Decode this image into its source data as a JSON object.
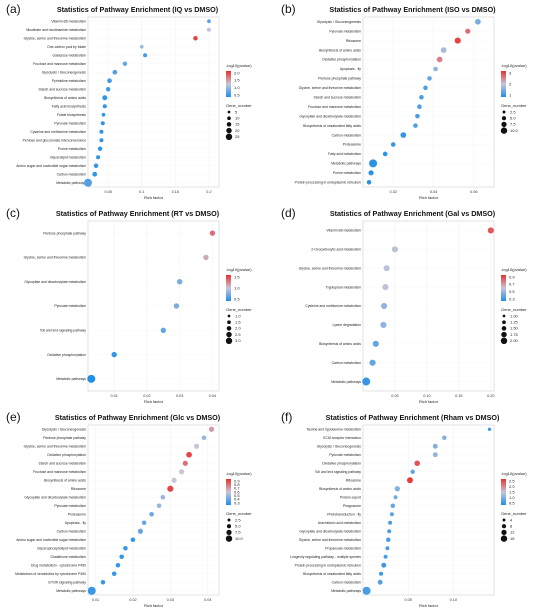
{
  "panels": [
    {
      "letter": "(a)",
      "title": "Statistics of Pathway Enrichment (IQ vs DMSO)"
    },
    {
      "letter": "(b)",
      "title": "Statistics of Pathway Enrichment (ISO vs DMSO)"
    },
    {
      "letter": "(c)",
      "title": "Statistics of Pathway Enrichment (RT vs DMSO)"
    },
    {
      "letter": "(d)",
      "title": "Statistics of Pathway Enrichment (Gal vs DMSO)"
    },
    {
      "letter": "(e)",
      "title": "Statistics of Pathway Enrichment (Glc vs DMSO)"
    },
    {
      "letter": "(f)",
      "title": "Statistics of Pathway Enrichment (Rham vs DMSO)"
    }
  ],
  "colors": {
    "low": "#1f8fe8",
    "mid": "#c9c6d8",
    "high": "#e8312d"
  },
  "chart_data": [
    {
      "type": "scatter",
      "title": "Statistics of Pathway Enrichment (IQ vs DMSO)",
      "xlabel": "Rich factor",
      "xticks": [
        0.05,
        0.1,
        0.15,
        0.2
      ],
      "xlim": [
        0.02,
        0.215
      ],
      "color_legend": {
        "title": "-log10(pvalue)",
        "ticks": [
          "2.0",
          "1.5",
          "1.0",
          "0.5"
        ],
        "min": 0.3,
        "max": 2.2
      },
      "size_legend": {
        "title": "Gene_number",
        "ticks": [
          "5",
          "10",
          "15",
          "20",
          "25"
        ]
      },
      "categories": [
        "Vitamin B6 metabolism",
        "Nicotinate and nicotinamide metabolism",
        "Glycine, serine and threonine metabolism",
        "One carbon pool by folate",
        "Galactose metabolism",
        "Fructose and mannose metabolism",
        "Glycolysis / Gluconeogenesis",
        "Pyrimidine metabolism",
        "Starch and sucrose metabolism",
        "Biosynthesis of amino acids",
        "Fatty acid biosynthesis",
        "Folate biosynthesis",
        "Pyruvate metabolism",
        "Cysteine and methionine metabolism",
        "Pentose and glucuronate interconversions",
        "Purine metabolism",
        "Glycerolipid metabolism",
        "Amino sugar and nucleotide sugar metabolism",
        "Carbon metabolism",
        "Metabolic pathways"
      ],
      "x": [
        0.2,
        0.2,
        0.18,
        0.1,
        0.105,
        0.075,
        0.06,
        0.052,
        0.05,
        0.045,
        0.045,
        0.043,
        0.042,
        0.04,
        0.04,
        0.038,
        0.035,
        0.032,
        0.03,
        0.02
      ],
      "pvalue_log": [
        0.6,
        1.2,
        2.1,
        1.0,
        0.5,
        0.7,
        0.6,
        0.5,
        0.5,
        0.4,
        0.4,
        0.4,
        0.4,
        0.4,
        0.4,
        0.4,
        0.4,
        0.4,
        0.4,
        0.6
      ],
      "gene_number": [
        2,
        3,
        4,
        2,
        3,
        4,
        5,
        5,
        4,
        6,
        3,
        2,
        3,
        3,
        3,
        4,
        3,
        4,
        5,
        22
      ]
    },
    {
      "type": "scatter",
      "title": "Statistics of Pathway Enrichment (ISO vs DMSO)",
      "xlabel": "Rich factor",
      "xticks": [
        0.02,
        0.04,
        0.06
      ],
      "xlim": [
        0.005,
        0.07
      ],
      "color_legend": {
        "title": "-log10(pvalue)",
        "ticks": [
          "3",
          "2",
          "1"
        ],
        "min": 0.2,
        "max": 3.2
      },
      "size_legend": {
        "title": "Gene_number",
        "ticks": [
          "2.5",
          "5.0",
          "7.5",
          "10.0"
        ]
      },
      "categories": [
        "Glycolysis / Gluconeogenesis",
        "Pyruvate metabolism",
        "Ribosome",
        "Biosynthesis of amino acids",
        "Oxidative phosphorylation",
        "Apoptosis - fly",
        "Pentose phosphate pathway",
        "Glycine, serine and threonine metabolism",
        "Starch and sucrose metabolism",
        "Fructose and mannose metabolism",
        "Glyoxylate and dicarboxylate metabolism",
        "Biosynthesis of unsaturated fatty acids",
        "Carbon metabolism",
        "Proteasome",
        "Fatty acid metabolism",
        "Metabolic pathways",
        "Purine metabolism",
        "Protein processing in endoplasmic reticulum"
      ],
      "x": [
        0.062,
        0.057,
        0.052,
        0.045,
        0.043,
        0.041,
        0.038,
        0.036,
        0.034,
        0.033,
        0.032,
        0.031,
        0.025,
        0.02,
        0.016,
        0.01,
        0.009,
        0.008
      ],
      "pvalue_log": [
        1.0,
        2.6,
        3.0,
        1.4,
        2.4,
        1.2,
        0.8,
        0.6,
        0.6,
        0.6,
        0.6,
        0.6,
        0.4,
        0.4,
        0.3,
        0.3,
        0.3,
        0.3
      ],
      "gene_number": [
        4,
        3,
        5,
        4,
        4,
        2,
        2,
        2,
        2,
        2,
        2,
        2,
        4,
        2,
        2,
        10,
        3,
        2
      ]
    },
    {
      "type": "scatter",
      "title": "Statistics of Pathway Enrichment (RT vs DMSO)",
      "xlabel": "Rich factor",
      "xticks": [
        0.01,
        0.02,
        0.03,
        0.04
      ],
      "xlim": [
        0.002,
        0.042
      ],
      "color_legend": {
        "title": "-log10(pvalue)",
        "ticks": [
          "1.5",
          "1.0",
          "0.5"
        ],
        "min": 0.3,
        "max": 1.8
      },
      "size_legend": {
        "title": "Gene_number",
        "ticks": [
          "1.0",
          "1.5",
          "2.0",
          "2.5",
          "3.0"
        ]
      },
      "categories": [
        "Pentose phosphate pathway",
        "Glycine, serine and threonine metabolism",
        "Glyoxylate and dicarboxylate metabolism",
        "Pyruvate metabolism",
        "Toll and Imd signaling pathway",
        "Oxidative phosphorylation",
        "Metabolic pathways"
      ],
      "x": [
        0.04,
        0.038,
        0.03,
        0.029,
        0.025,
        0.01,
        0.003
      ],
      "pvalue_log": [
        1.5,
        1.2,
        0.7,
        0.7,
        0.6,
        0.4,
        0.3
      ],
      "gene_number": [
        1,
        1,
        1,
        1,
        1,
        1,
        3
      ]
    },
    {
      "type": "scatter",
      "title": "Statistics of Pathway Enrichment (Gal vs DMSO)",
      "xlabel": "Rich factor",
      "xticks": [
        0.05,
        0.1,
        0.15,
        0.2
      ],
      "xlim": [
        0.0,
        0.205
      ],
      "xticklabels": [
        "0.05",
        "0.10",
        "0.15",
        "0.20"
      ],
      "color_legend": {
        "title": "-log10(pvalue)",
        "ticks": [
          "0.9",
          "0.7",
          "0.5",
          "0.3"
        ],
        "min": 0.25,
        "max": 1.0
      },
      "size_legend": {
        "title": "Gene_number",
        "ticks": [
          "1.00",
          "1.25",
          "1.50",
          "1.75",
          "2.00"
        ]
      },
      "categories": [
        "Vitamin B6 metabolism",
        "2-Oxocarboxylic acid metabolism",
        "Glycine, serine and threonine metabolism",
        "Tryptophan metabolism",
        "Cysteine and methionine metabolism",
        "Lysine degradation",
        "Biosynthesis of amino acids",
        "Carbon metabolism",
        "Metabolic pathways"
      ],
      "x": [
        0.2,
        0.05,
        0.037,
        0.035,
        0.033,
        0.032,
        0.02,
        0.015,
        0.005
      ],
      "pvalue_log": [
        0.9,
        0.6,
        0.6,
        0.6,
        0.5,
        0.5,
        0.4,
        0.4,
        0.3
      ],
      "gene_number": [
        1,
        1,
        1,
        1,
        1,
        1,
        1,
        1,
        2
      ]
    },
    {
      "type": "scatter",
      "title": "Statistics of Pathway Enrichment (Glc vs DMSO)",
      "xlabel": "Rich factor",
      "xticks": [
        0.01,
        0.02,
        0.03,
        0.04
      ],
      "xlim": [
        0.008,
        0.043
      ],
      "color_legend": {
        "title": "-log10(pvalue)",
        "ticks": [
          "0.9",
          "0.8",
          "0.7",
          "0.6",
          "0.5",
          "0.4",
          "0.3"
        ],
        "min": 0.25,
        "max": 0.95
      },
      "size_legend": {
        "title": "Gene_number",
        "ticks": [
          "2.5",
          "5.0",
          "7.5",
          "10.0"
        ]
      },
      "categories": [
        "Glycolysis / Gluconeogenesis",
        "Pentose phosphate pathway",
        "Glycine, serine and threonine metabolism",
        "Oxidative phosphorylation",
        "Starch and sucrose metabolism",
        "Fructose and mannose metabolism",
        "Biosynthesis of amino acids",
        "Ribosome",
        "Glyoxylate and dicarboxylate metabolism",
        "Pyruvate metabolism",
        "Proteasome",
        "Apoptosis - fly",
        "Carbon metabolism",
        "Amino sugar and nucleotide sugar metabolism",
        "Glycerophospholipid metabolism",
        "Glutathione metabolism",
        "Drug metabolism - cytochrome P450",
        "Metabolism of xenobiotics by cytochrome P450",
        "mTOR signaling pathway",
        "Metabolic pathways"
      ],
      "x": [
        0.041,
        0.039,
        0.037,
        0.035,
        0.034,
        0.033,
        0.031,
        0.03,
        0.028,
        0.027,
        0.025,
        0.023,
        0.022,
        0.02,
        0.018,
        0.017,
        0.016,
        0.015,
        0.012,
        0.009
      ],
      "pvalue_log": [
        0.7,
        0.5,
        0.6,
        0.9,
        0.8,
        0.6,
        0.6,
        0.9,
        0.5,
        0.5,
        0.4,
        0.4,
        0.4,
        0.3,
        0.3,
        0.3,
        0.3,
        0.3,
        0.3,
        0.3
      ],
      "gene_number": [
        3,
        2,
        3,
        4,
        3,
        3,
        3,
        5,
        2,
        2,
        2,
        2,
        3,
        2,
        2,
        2,
        2,
        2,
        2,
        10
      ]
    },
    {
      "type": "scatter",
      "title": "Statistics of Pathway Enrichment (Rham vs DMSO)",
      "xlabel": "Rich factor",
      "xticks": [
        0.05,
        0.1
      ],
      "xlim": [
        0.0,
        0.145
      ],
      "xticklabels": [
        "0.05",
        "0.10"
      ],
      "color_legend": {
        "title": "-log10(pvalue)",
        "ticks": [
          "2.5",
          "2.0",
          "1.5",
          "1.0",
          "0.5"
        ],
        "min": 0.3,
        "max": 2.7
      },
      "size_legend": {
        "title": "Gene_number",
        "ticks": [
          "4",
          "8",
          "12",
          "16"
        ]
      },
      "categories": [
        "Taurine and hypotaurine metabolism",
        "ECM-receptor interaction",
        "Glycolysis / Gluconeogenesis",
        "Pyruvate metabolism",
        "Oxidative phosphorylation",
        "Toll and Imd signaling pathway",
        "Ribosome",
        "Biosynthesis of amino acids",
        "Protein export",
        "Phagosome",
        "Phototransduction - fly",
        "Arachidonic acid metabolism",
        "Glyoxylate and dicarboxylate metabolism",
        "Glycine, serine and threonine metabolism",
        "Propanoate metabolism",
        "Longevity regulating pathway - multiple species",
        "Protein processing in endoplasmic reticulum",
        "Biosynthesis of unsaturated fatty acids",
        "Carbon metabolism",
        "Metabolic pathways"
      ],
      "x": [
        0.14,
        0.09,
        0.08,
        0.08,
        0.06,
        0.055,
        0.052,
        0.038,
        0.036,
        0.033,
        0.032,
        0.03,
        0.029,
        0.028,
        0.027,
        0.025,
        0.023,
        0.02,
        0.019,
        0.004
      ],
      "pvalue_log": [
        0.5,
        1.0,
        1.0,
        1.1,
        2.4,
        0.8,
        2.6,
        1.0,
        0.9,
        0.8,
        0.7,
        0.6,
        0.6,
        0.6,
        0.6,
        0.6,
        0.5,
        0.5,
        0.7,
        0.6
      ],
      "gene_number": [
        1,
        3,
        4,
        4,
        6,
        3,
        7,
        5,
        2,
        3,
        2,
        2,
        2,
        3,
        2,
        2,
        4,
        2,
        4,
        16
      ]
    }
  ]
}
